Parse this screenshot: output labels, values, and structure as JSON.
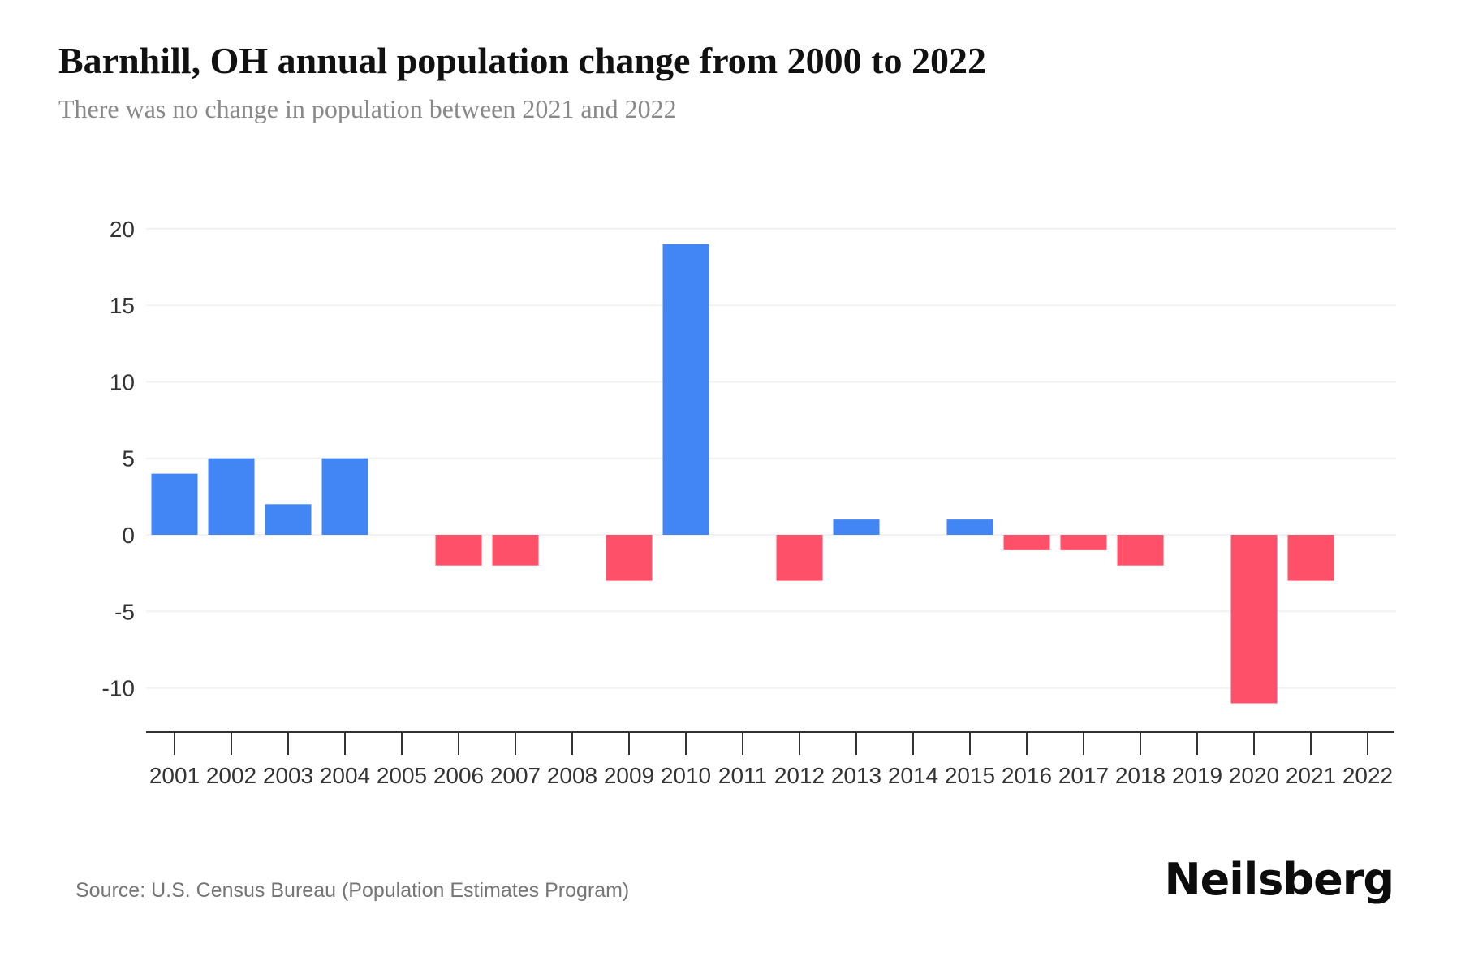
{
  "header": {
    "title": "Barnhill, OH annual population change from 2000 to 2022",
    "subtitle": "There was no change in population between 2021 and 2022"
  },
  "footer": {
    "source": "Source: U.S. Census Bureau (Population Estimates Program)",
    "brand": "Neilsberg"
  },
  "colors": {
    "positive_bar": "#4285f4",
    "negative_bar": "#ff5069",
    "gridline": "#f2f2f2",
    "axis": "#333333",
    "axis_label": "#333333",
    "title": "#111111",
    "subtitle": "#898989",
    "source": "#757575",
    "brand": "#0c0c0c",
    "background": "#ffffff"
  },
  "chart_data": {
    "type": "bar",
    "title": "Barnhill, OH annual population change from 2000 to 2022",
    "subtitle": "There was no change in population between 2021 and 2022",
    "categories": [
      "2001",
      "2002",
      "2003",
      "2004",
      "2005",
      "2006",
      "2007",
      "2008",
      "2009",
      "2010",
      "2011",
      "2012",
      "2013",
      "2014",
      "2015",
      "2016",
      "2017",
      "2018",
      "2019",
      "2020",
      "2021",
      "2022"
    ],
    "values": [
      4,
      5,
      2,
      5,
      0,
      -2,
      -2,
      0,
      -3,
      19,
      0,
      -3,
      1,
      0,
      1,
      -1,
      -1,
      -2,
      0,
      -11,
      -3,
      0
    ],
    "xlabel": "",
    "ylabel": "",
    "ylim": [
      -13,
      22
    ],
    "yticks": [
      20,
      15,
      10,
      5,
      0,
      -5,
      -10
    ],
    "grid": "horizontal",
    "legend": false,
    "bars_at_zero_not_drawn": true,
    "positive_color": "#4285f4",
    "negative_color": "#ff5069"
  }
}
